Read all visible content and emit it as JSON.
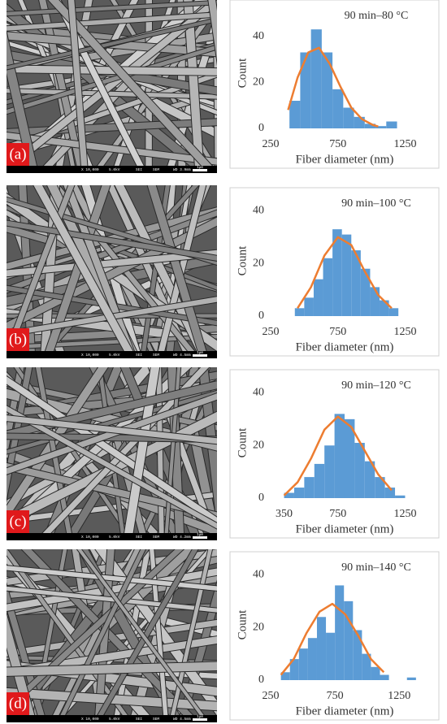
{
  "chart_data": [
    {
      "type": "histogram",
      "title": "90 min–80 °C",
      "panel_label": "(a)",
      "sem_bar": [
        "X 10,000",
        "5.0kV",
        "SEI",
        "SEM",
        "WD 3.9mm",
        "1μm"
      ],
      "x_label": "Fiber diameter (nm)",
      "y_label": "Count",
      "color": "#5b9bd5",
      "bins": [
        390,
        470,
        550,
        630,
        710,
        790,
        870,
        950,
        1030,
        1110,
        1190
      ],
      "values": [
        12,
        33,
        43,
        33,
        17,
        9,
        5,
        2,
        1,
        3
      ],
      "curve": {
        "color": "#ed7d31",
        "x": [
          380,
          450,
          530,
          610,
          690,
          770,
          850,
          930,
          1010,
          1050
        ],
        "y": [
          8,
          22,
          33,
          35,
          28,
          18,
          9,
          4,
          1.5,
          0.8
        ]
      },
      "xlim": [
        250,
        1350
      ],
      "xticks": [
        250,
        750,
        1250
      ],
      "ylim": [
        0,
        48
      ],
      "yticks": [
        0,
        20,
        40
      ]
    },
    {
      "type": "histogram",
      "title": "90 min–100 °C",
      "panel_label": "(b)",
      "sem_bar": [
        "X 10,000",
        "5.0kV",
        "SEI",
        "SEM",
        "WD 4.5mm",
        "1μm"
      ],
      "x_label": "Fiber diameter (nm)",
      "y_label": "Count",
      "color": "#5b9bd5",
      "bins": [
        430,
        500,
        570,
        640,
        710,
        780,
        850,
        920,
        990,
        1060,
        1130,
        1200
      ],
      "values": [
        3,
        7,
        14,
        22,
        33,
        31,
        25,
        18,
        11,
        6,
        3
      ],
      "curve": {
        "color": "#ed7d31",
        "x": [
          450,
          550,
          650,
          750,
          850,
          950,
          1050,
          1150
        ],
        "y": [
          3,
          11,
          23,
          30,
          27,
          17,
          8,
          3
        ]
      },
      "xlim": [
        250,
        1350
      ],
      "xticks": [
        250,
        750,
        1250
      ],
      "ylim": [
        0,
        42
      ],
      "yticks": [
        0,
        20,
        40
      ]
    },
    {
      "type": "histogram",
      "title": "90 min–120 °C",
      "panel_label": "(c)",
      "sem_bar": [
        "X 10,000",
        "5.0kV",
        "SEI",
        "SEM",
        "WD 4.2mm",
        "1μm"
      ],
      "x_label": "Fiber diameter (nm)",
      "y_label": "Count",
      "color": "#5b9bd5",
      "bins": [
        350,
        425,
        500,
        575,
        650,
        725,
        800,
        875,
        950,
        1025,
        1100,
        1175,
        1250
      ],
      "values": [
        2,
        4,
        8,
        13,
        20,
        32,
        30,
        21,
        14,
        8,
        4,
        1
      ],
      "curve": {
        "color": "#ed7d31",
        "x": [
          350,
          450,
          550,
          650,
          750,
          850,
          950,
          1050,
          1150
        ],
        "y": [
          1,
          6,
          15,
          26,
          31,
          27,
          18,
          9,
          3
        ]
      },
      "xlim": [
        250,
        1350
      ],
      "xticks": [
        350,
        750,
        1250
      ],
      "ylim": [
        0,
        42
      ],
      "yticks": [
        0,
        20,
        40
      ]
    },
    {
      "type": "histogram",
      "title": "90 min–140 °C",
      "panel_label": "(d)",
      "sem_bar": [
        "X 10,000",
        "5.0kV",
        "SEI",
        "SEM",
        "WD 4.5mm",
        "1μm"
      ],
      "x_label": "Fiber diameter (nm)",
      "y_label": "Count",
      "color": "#5b9bd5",
      "bins": [
        330,
        400,
        470,
        540,
        610,
        680,
        750,
        820,
        890,
        960,
        1030,
        1100,
        1170,
        1240,
        1310,
        1380
      ],
      "values": [
        3,
        8,
        12,
        16,
        24,
        18,
        36,
        30,
        19,
        10,
        5,
        2,
        0,
        0,
        1
      ],
      "curve": {
        "color": "#ed7d31",
        "x": [
          330,
          430,
          530,
          630,
          730,
          830,
          930,
          1030,
          1130
        ],
        "y": [
          2,
          8,
          18,
          26,
          29,
          25,
          17,
          8,
          3
        ]
      },
      "xlim": [
        250,
        1400
      ],
      "xticks": [
        250,
        750,
        1250
      ],
      "ylim": [
        0,
        42
      ],
      "yticks": [
        0,
        20,
        40
      ]
    }
  ]
}
